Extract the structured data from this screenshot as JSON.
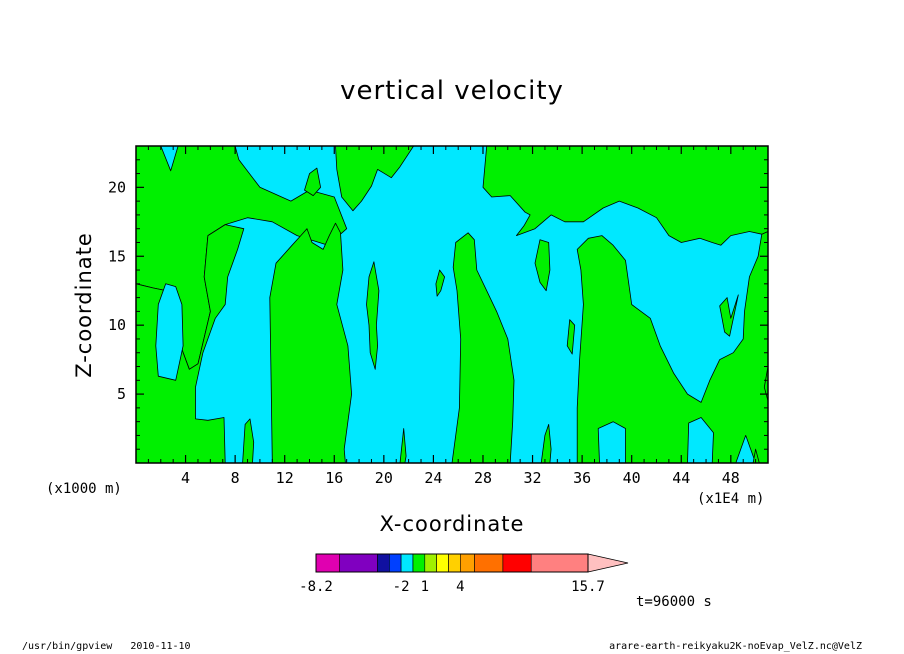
{
  "chart_data": {
    "type": "heatmap",
    "title": "vertical velocity",
    "xlabel": "X-coordinate",
    "ylabel": "Z-coordinate",
    "x_unit_left": "(x1000 m)",
    "x_unit_right": "(x1E4 m)",
    "xlim": [
      0,
      51
    ],
    "ylim": [
      0,
      23
    ],
    "x_ticks": [
      4,
      8,
      12,
      16,
      20,
      24,
      28,
      32,
      36,
      40,
      44,
      48
    ],
    "y_ticks": [
      5,
      10,
      15,
      20
    ],
    "x_tick_labels": [
      "4",
      "8",
      "12",
      "16",
      "20",
      "24",
      "28",
      "32",
      "36",
      "40",
      "44",
      "48"
    ],
    "y_tick_labels": [
      "5",
      "10",
      "15",
      "20"
    ],
    "colorbar": {
      "levels": [
        -8.2,
        -2,
        1,
        4,
        15.7
      ],
      "labels": [
        "-8.2",
        "-2",
        "1",
        "4",
        "15.7"
      ],
      "colors": [
        "#e000b0",
        "#8000c0",
        "#1010a0",
        "#0040ff",
        "#00e8ff",
        "#00f000",
        "#a0f000",
        "#ffff00",
        "#ffd000",
        "#ffa000",
        "#ff7000",
        "#ff0000",
        "#ff8080"
      ],
      "arrow_color": "#ffc0c0"
    },
    "filled_colors": {
      "background": "#00e8ff",
      "positive": "#00f000"
    },
    "time_label": "t=96000 s",
    "regions": [
      {
        "name": "upper-left band",
        "polygon": [
          [
            0,
            17
          ],
          [
            0,
            23
          ],
          [
            2,
            23
          ],
          [
            2.8,
            21.2
          ],
          [
            3.4,
            23
          ],
          [
            8,
            23
          ],
          [
            8.3,
            22
          ],
          [
            10,
            20
          ],
          [
            12.5,
            19
          ],
          [
            14,
            19.8
          ],
          [
            16,
            19.3
          ],
          [
            17,
            17
          ],
          [
            15.5,
            15.8
          ],
          [
            13,
            16.5
          ],
          [
            11,
            17.5
          ],
          [
            9,
            17.8
          ],
          [
            7.2,
            17.3
          ],
          [
            5.8,
            16.5
          ],
          [
            5.5,
            13.5
          ],
          [
            6,
            11
          ],
          [
            5,
            7.2
          ],
          [
            4.3,
            6.8
          ],
          [
            3.4,
            9
          ],
          [
            3.5,
            11
          ],
          [
            3,
            12.4
          ],
          [
            1.4,
            12.7
          ],
          [
            0,
            13
          ]
        ]
      },
      {
        "name": "left lower region",
        "polygon": [
          [
            0,
            0
          ],
          [
            0,
            13
          ],
          [
            1.4,
            12.7
          ],
          [
            3,
            12.4
          ],
          [
            3.5,
            11
          ],
          [
            3.4,
            9
          ],
          [
            4.3,
            6.8
          ],
          [
            5,
            7.2
          ],
          [
            6,
            11
          ],
          [
            5.5,
            13.5
          ],
          [
            5.8,
            16.5
          ],
          [
            7.2,
            17.3
          ],
          [
            8.7,
            17
          ],
          [
            8.2,
            15.5
          ],
          [
            7.4,
            13.5
          ],
          [
            7.2,
            11.5
          ],
          [
            6.4,
            10.5
          ],
          [
            5.4,
            8
          ],
          [
            4.8,
            5.5
          ],
          [
            4.8,
            3.2
          ],
          [
            5.8,
            3.1
          ],
          [
            7.1,
            3.3
          ],
          [
            7.2,
            0
          ]
        ]
      },
      {
        "name": "left hole",
        "polygon": [
          [
            1.8,
            6.3
          ],
          [
            3.2,
            6
          ],
          [
            3.8,
            8.5
          ],
          [
            3.7,
            11.5
          ],
          [
            3.2,
            12.8
          ],
          [
            2.4,
            13
          ],
          [
            1.8,
            11.5
          ],
          [
            1.6,
            8.5
          ]
        ]
      },
      {
        "name": "column 12-16",
        "polygon": [
          [
            11,
            0
          ],
          [
            10.9,
            6
          ],
          [
            10.8,
            12
          ],
          [
            11.3,
            14.5
          ],
          [
            12.6,
            15.8
          ],
          [
            13.3,
            16.5
          ],
          [
            13.8,
            17
          ],
          [
            14.2,
            16
          ],
          [
            15.1,
            15.5
          ],
          [
            15.6,
            16.5
          ],
          [
            16.1,
            17.4
          ],
          [
            16.5,
            16.7
          ],
          [
            16.7,
            14
          ],
          [
            16.2,
            11.5
          ],
          [
            17.1,
            8.5
          ],
          [
            17.4,
            5
          ],
          [
            16.8,
            1
          ],
          [
            16.9,
            0
          ]
        ]
      },
      {
        "name": "column 26-31",
        "polygon": [
          [
            25.5,
            0
          ],
          [
            26.1,
            4
          ],
          [
            26.2,
            9
          ],
          [
            25.9,
            12.5
          ],
          [
            25.6,
            14.2
          ],
          [
            25.8,
            16
          ],
          [
            26.8,
            16.7
          ],
          [
            27.3,
            16.2
          ],
          [
            27.5,
            14
          ],
          [
            28.3,
            12.5
          ],
          [
            29.1,
            11
          ],
          [
            30,
            9
          ],
          [
            30.5,
            6
          ],
          [
            30.4,
            3
          ],
          [
            30.2,
            0
          ]
        ]
      },
      {
        "name": "right region",
        "polygon": [
          [
            35.6,
            0
          ],
          [
            35.6,
            4
          ],
          [
            35.8,
            7.5
          ],
          [
            36.1,
            11.5
          ],
          [
            35.9,
            14
          ],
          [
            35.6,
            15.5
          ],
          [
            36.5,
            16.3
          ],
          [
            37.6,
            16.5
          ],
          [
            38.5,
            15.8
          ],
          [
            39.5,
            14.7
          ],
          [
            40,
            11.5
          ],
          [
            41.5,
            10.5
          ],
          [
            42.3,
            8.5
          ],
          [
            43.4,
            6.5
          ],
          [
            44.5,
            5
          ],
          [
            45.6,
            4.4
          ],
          [
            46.3,
            6
          ],
          [
            47.1,
            7.5
          ],
          [
            48.2,
            8
          ],
          [
            49,
            9
          ],
          [
            49.1,
            11
          ],
          [
            49.5,
            13.5
          ],
          [
            50.2,
            15
          ],
          [
            50.5,
            16.6
          ],
          [
            51,
            16.8
          ],
          [
            51,
            0
          ],
          [
            50,
            0
          ],
          [
            49.2,
            2
          ],
          [
            48.4,
            0
          ],
          [
            46.5,
            0
          ],
          [
            46.6,
            2.2
          ],
          [
            45.6,
            3.3
          ],
          [
            44.6,
            2.9
          ],
          [
            44.5,
            0
          ],
          [
            39.5,
            0
          ],
          [
            39.5,
            2.5
          ],
          [
            38.5,
            3
          ],
          [
            37.3,
            2.5
          ],
          [
            37.4,
            0
          ]
        ]
      },
      {
        "name": "upper-right region",
        "polygon": [
          [
            28.3,
            23
          ],
          [
            28,
            20
          ],
          [
            28.7,
            19.3
          ],
          [
            30.2,
            19.4
          ],
          [
            31.4,
            18.2
          ],
          [
            31.8,
            18
          ],
          [
            31.3,
            17.2
          ],
          [
            30.7,
            16.5
          ],
          [
            32.2,
            17
          ],
          [
            33.5,
            18
          ],
          [
            34.6,
            17.5
          ],
          [
            36.1,
            17.5
          ],
          [
            37.7,
            18.5
          ],
          [
            39,
            19
          ],
          [
            40.5,
            18.5
          ],
          [
            42,
            17.8
          ],
          [
            43,
            16.5
          ],
          [
            44,
            16
          ],
          [
            45.5,
            16.3
          ],
          [
            46.5,
            16
          ],
          [
            47.2,
            15.8
          ],
          [
            48,
            16.5
          ],
          [
            49.5,
            16.8
          ],
          [
            50.5,
            16.6
          ],
          [
            51,
            16.8
          ],
          [
            51,
            23
          ]
        ]
      },
      {
        "name": "upper-middle blob",
        "polygon": [
          [
            16.1,
            23
          ],
          [
            16.2,
            21.3
          ],
          [
            16.6,
            19.3
          ],
          [
            17.5,
            18.3
          ],
          [
            18.2,
            19
          ],
          [
            19,
            20.1
          ],
          [
            19.5,
            21.3
          ],
          [
            20.6,
            20.7
          ],
          [
            21.3,
            21.5
          ],
          [
            22.4,
            23
          ]
        ]
      },
      {
        "name": "blob x20 z12",
        "polygon": [
          [
            18.6,
            11.5
          ],
          [
            18.8,
            13.5
          ],
          [
            19.2,
            14.6
          ],
          [
            19.6,
            12.5
          ],
          [
            19.4,
            10
          ],
          [
            19.5,
            8.5
          ],
          [
            19.3,
            6.8
          ],
          [
            18.9,
            8
          ],
          [
            18.8,
            10
          ]
        ]
      },
      {
        "name": "blob x14 z20",
        "polygon": [
          [
            13.6,
            19.8
          ],
          [
            14,
            21
          ],
          [
            14.6,
            21.4
          ],
          [
            14.9,
            20
          ],
          [
            14.3,
            19.4
          ]
        ]
      },
      {
        "name": "blob x24 z13",
        "polygon": [
          [
            24.2,
            13
          ],
          [
            24.5,
            14
          ],
          [
            24.9,
            13.5
          ],
          [
            24.6,
            12.5
          ],
          [
            24.3,
            12.1
          ]
        ]
      },
      {
        "name": "blob x33 z15",
        "polygon": [
          [
            32.2,
            14.5
          ],
          [
            32.6,
            16.2
          ],
          [
            33.3,
            16
          ],
          [
            33.4,
            14
          ],
          [
            33.1,
            12.5
          ],
          [
            32.6,
            13.1
          ]
        ]
      },
      {
        "name": "blob x35 z9",
        "polygon": [
          [
            34.8,
            8.5
          ],
          [
            35,
            10.4
          ],
          [
            35.4,
            10
          ],
          [
            35.2,
            7.9
          ]
        ]
      },
      {
        "name": "blob x48 z11",
        "polygon": [
          [
            47.1,
            11.4
          ],
          [
            47.7,
            12
          ],
          [
            48,
            10.5
          ],
          [
            48.6,
            12.2
          ],
          [
            47.9,
            9.2
          ],
          [
            47.5,
            9.5
          ]
        ]
      },
      {
        "name": "thin x9 bottom",
        "polygon": [
          [
            8.6,
            0
          ],
          [
            8.8,
            2.8
          ],
          [
            9.2,
            3.2
          ],
          [
            9.5,
            1.5
          ],
          [
            9.4,
            0
          ]
        ]
      },
      {
        "name": "thin x21.5 bottom",
        "polygon": [
          [
            21.3,
            0
          ],
          [
            21.6,
            2.5
          ],
          [
            21.8,
            0.5
          ],
          [
            21.7,
            0
          ]
        ]
      },
      {
        "name": "thin x33 bottom",
        "polygon": [
          [
            32.7,
            0
          ],
          [
            33,
            2
          ],
          [
            33.3,
            2.8
          ],
          [
            33.5,
            1
          ],
          [
            33.4,
            0
          ]
        ]
      },
      {
        "name": "thin x50 bottom",
        "polygon": [
          [
            49.8,
            0
          ],
          [
            50,
            1
          ],
          [
            50.3,
            0
          ]
        ]
      },
      {
        "name": "right edge bit",
        "polygon": [
          [
            50.7,
            5.5
          ],
          [
            51,
            7
          ],
          [
            51,
            4.5
          ]
        ]
      }
    ]
  },
  "footer": {
    "program": "/usr/bin/gpview",
    "date": "2010-11-10",
    "source": "arare-earth-reikyaku2K-noEvap_VelZ.nc@VelZ"
  }
}
